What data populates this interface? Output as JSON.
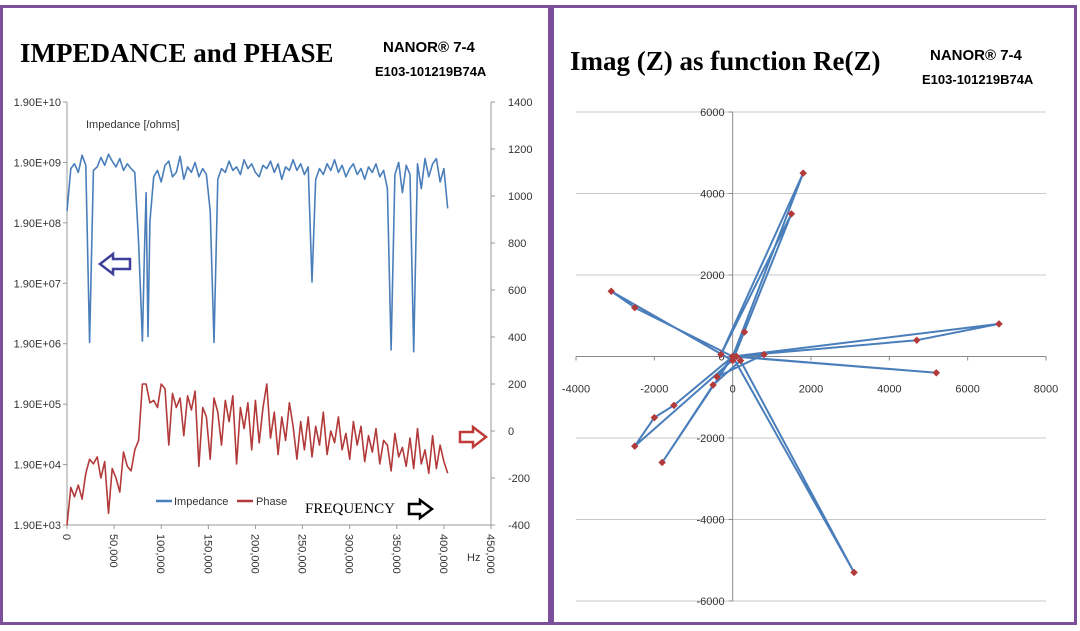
{
  "colors": {
    "border": "#7b4f9a",
    "impedance": "#4a7ebb",
    "phase": "#b23a3a",
    "grid": "#c8c8c8",
    "left_arrow": "#3d3f9b",
    "right_arrow": "#c03a3a",
    "marker": "#b23a3a"
  },
  "left": {
    "title": "IMPEDANCE and PHASE",
    "product": "NANOR® 7-4",
    "serial": "E103-101219B74A",
    "series_label": "Impedance [/ohms]",
    "legend_impedance": "Impedance",
    "legend_phase": "Phase",
    "freq_label": "FREQUENCY",
    "unit_label": "Hz",
    "icons": [
      "left-arrow-icon",
      "right-arrow-icon",
      "frequency-arrow-icon"
    ]
  },
  "right": {
    "title": "Imag (Z) as function Re(Z)",
    "product": "NANOR® 7-4",
    "serial": "E103-101219B74A"
  },
  "chart_data": [
    {
      "type": "line",
      "title": "IMPEDANCE and PHASE",
      "xlabel": "Hz",
      "xlim": [
        0,
        450000
      ],
      "x_ticks": [
        "0",
        "50,000",
        "100,000",
        "150,000",
        "200,000",
        "250,000",
        "300,000",
        "350,000",
        "400,000",
        "450,000"
      ],
      "y_left_scale": "log",
      "y_left_ticks": [
        "1.90E+03",
        "1.90E+04",
        "1.90E+05",
        "1.90E+06",
        "1.90E+07",
        "1.90E+08",
        "1.90E+09",
        "1.90E+10"
      ],
      "y_left_lim": [
        1900,
        19000000000
      ],
      "y_right_ticks": [
        "-400",
        "-200",
        "0",
        "200",
        "400",
        "600",
        "800",
        "1000",
        "1200",
        "1400"
      ],
      "y_right_lim": [
        -400,
        1400
      ],
      "grid": false,
      "legend_position": "bottom",
      "annotations": [
        "Impedance [/ohms]",
        "FREQUENCY"
      ],
      "series": [
        {
          "name": "Impedance",
          "axis": "left",
          "points": [
            [
              0,
              300000000
            ],
            [
              4000,
              1500000000
            ],
            [
              8000,
              1800000000
            ],
            [
              12000,
              1300000000
            ],
            [
              16000,
              2500000000
            ],
            [
              20000,
              1700000000
            ],
            [
              24000,
              2000000
            ],
            [
              28000,
              1400000000
            ],
            [
              32000,
              1600000000
            ],
            [
              36000,
              2300000000
            ],
            [
              40000,
              1700000000
            ],
            [
              44000,
              2600000000
            ],
            [
              48000,
              2000000000
            ],
            [
              52000,
              1600000000
            ],
            [
              56000,
              2200000000
            ],
            [
              60000,
              1400000000
            ],
            [
              64000,
              1800000000
            ],
            [
              68000,
              1500000000
            ],
            [
              72000,
              1300000000
            ],
            [
              76000,
              90000000
            ],
            [
              80000,
              2100000
            ],
            [
              82000,
              50000000
            ],
            [
              84000,
              600000000
            ],
            [
              86000,
              2500000
            ],
            [
              88000,
              200000000
            ],
            [
              92000,
              1100000000
            ],
            [
              96000,
              1400000000
            ],
            [
              100000,
              900000000
            ],
            [
              104000,
              1700000000
            ],
            [
              108000,
              2000000000
            ],
            [
              112000,
              1100000000
            ],
            [
              116000,
              1300000000
            ],
            [
              120000,
              2400000000
            ],
            [
              124000,
              1000000000
            ],
            [
              128000,
              1600000000
            ],
            [
              132000,
              1300000000
            ],
            [
              136000,
              1900000000
            ],
            [
              140000,
              1100000000
            ],
            [
              144000,
              1500000000
            ],
            [
              148000,
              1200000000
            ],
            [
              152000,
              300000000
            ],
            [
              156000,
              2000000
            ],
            [
              160000,
              1000000000
            ],
            [
              164000,
              1500000000
            ],
            [
              168000,
              1300000000
            ],
            [
              172000,
              2000000000
            ],
            [
              176000,
              1400000000
            ],
            [
              180000,
              1600000000
            ],
            [
              184000,
              1200000000
            ],
            [
              188000,
              2100000000
            ],
            [
              192000,
              1500000000
            ],
            [
              196000,
              1800000000
            ],
            [
              200000,
              1300000000
            ],
            [
              204000,
              1100000000
            ],
            [
              208000,
              1700000000
            ],
            [
              212000,
              1500000000
            ],
            [
              216000,
              2000000000
            ],
            [
              220000,
              1300000000
            ],
            [
              224000,
              1800000000
            ],
            [
              228000,
              1000000000
            ],
            [
              232000,
              1600000000
            ],
            [
              236000,
              1400000000
            ],
            [
              240000,
              2100000000
            ],
            [
              244000,
              1400000000
            ],
            [
              248000,
              1800000000
            ],
            [
              252000,
              1200000000
            ],
            [
              256000,
              1600000000
            ],
            [
              260000,
              20000000
            ],
            [
              264000,
              1000000000
            ],
            [
              268000,
              1500000000
            ],
            [
              272000,
              1200000000
            ],
            [
              276000,
              1800000000
            ],
            [
              280000,
              1400000000
            ],
            [
              284000,
              2100000000
            ],
            [
              288000,
              1300000000
            ],
            [
              292000,
              1700000000
            ],
            [
              296000,
              1100000000
            ],
            [
              300000,
              1500000000
            ],
            [
              304000,
              1800000000
            ],
            [
              308000,
              1200000000
            ],
            [
              312000,
              1500000000
            ],
            [
              316000,
              1000000000
            ],
            [
              320000,
              1600000000
            ],
            [
              324000,
              1300000000
            ],
            [
              328000,
              1800000000
            ],
            [
              332000,
              1100000000
            ],
            [
              336000,
              1400000000
            ],
            [
              340000,
              700000000
            ],
            [
              344000,
              1500000
            ],
            [
              348000,
              1200000000
            ],
            [
              352000,
              1900000000
            ],
            [
              356000,
              600000000
            ],
            [
              360000,
              1700000000
            ],
            [
              364000,
              1200000000
            ],
            [
              368000,
              1400000
            ],
            [
              372000,
              1800000000
            ],
            [
              376000,
              700000000
            ],
            [
              380000,
              2200000000
            ],
            [
              384000,
              1100000000
            ],
            [
              388000,
              1800000000
            ],
            [
              392000,
              2200000000
            ],
            [
              396000,
              900000000
            ],
            [
              400000,
              1500000000
            ],
            [
              404000,
              330000000
            ]
          ]
        },
        {
          "name": "Phase",
          "axis": "right",
          "points": [
            [
              0,
              -400
            ],
            [
              4000,
              -240
            ],
            [
              8000,
              -280
            ],
            [
              12000,
              -230
            ],
            [
              16000,
              -290
            ],
            [
              20000,
              -180
            ],
            [
              24000,
              -120
            ],
            [
              28000,
              -140
            ],
            [
              32000,
              -110
            ],
            [
              36000,
              -200
            ],
            [
              40000,
              -130
            ],
            [
              44000,
              -350
            ],
            [
              48000,
              -160
            ],
            [
              52000,
              -200
            ],
            [
              56000,
              -260
            ],
            [
              60000,
              -90
            ],
            [
              64000,
              -150
            ],
            [
              68000,
              -170
            ],
            [
              72000,
              -80
            ],
            [
              76000,
              -40
            ],
            [
              80000,
              200
            ],
            [
              84000,
              200
            ],
            [
              88000,
              120
            ],
            [
              92000,
              130
            ],
            [
              96000,
              100
            ],
            [
              100000,
              200
            ],
            [
              104000,
              180
            ],
            [
              108000,
              -60
            ],
            [
              112000,
              160
            ],
            [
              116000,
              100
            ],
            [
              120000,
              140
            ],
            [
              124000,
              -20
            ],
            [
              128000,
              150
            ],
            [
              132000,
              90
            ],
            [
              136000,
              170
            ],
            [
              140000,
              -150
            ],
            [
              144000,
              100
            ],
            [
              148000,
              60
            ],
            [
              152000,
              -120
            ],
            [
              156000,
              140
            ],
            [
              160000,
              80
            ],
            [
              164000,
              -60
            ],
            [
              168000,
              130
            ],
            [
              172000,
              40
            ],
            [
              176000,
              150
            ],
            [
              180000,
              -140
            ],
            [
              184000,
              100
            ],
            [
              188000,
              10
            ],
            [
              192000,
              120
            ],
            [
              196000,
              -80
            ],
            [
              200000,
              130
            ],
            [
              204000,
              -50
            ],
            [
              208000,
              100
            ],
            [
              212000,
              200
            ],
            [
              216000,
              -30
            ],
            [
              220000,
              80
            ],
            [
              224000,
              -100
            ],
            [
              228000,
              60
            ],
            [
              232000,
              -40
            ],
            [
              236000,
              120
            ],
            [
              240000,
              20
            ],
            [
              244000,
              -120
            ],
            [
              248000,
              40
            ],
            [
              252000,
              -80
            ],
            [
              256000,
              60
            ],
            [
              260000,
              -110
            ],
            [
              264000,
              20
            ],
            [
              268000,
              -60
            ],
            [
              272000,
              80
            ],
            [
              276000,
              -100
            ],
            [
              280000,
              0
            ],
            [
              284000,
              -50
            ],
            [
              288000,
              60
            ],
            [
              292000,
              -80
            ],
            [
              296000,
              -10
            ],
            [
              300000,
              -120
            ],
            [
              304000,
              40
            ],
            [
              308000,
              -60
            ],
            [
              312000,
              20
            ],
            [
              316000,
              -130
            ],
            [
              320000,
              -20
            ],
            [
              324000,
              -90
            ],
            [
              328000,
              10
            ],
            [
              332000,
              -140
            ],
            [
              336000,
              -40
            ],
            [
              340000,
              -60
            ],
            [
              344000,
              -170
            ],
            [
              348000,
              -10
            ],
            [
              352000,
              -110
            ],
            [
              356000,
              -70
            ],
            [
              360000,
              -150
            ],
            [
              364000,
              -30
            ],
            [
              368000,
              -160
            ],
            [
              372000,
              10
            ],
            [
              376000,
              -140
            ],
            [
              380000,
              -80
            ],
            [
              384000,
              -180
            ],
            [
              388000,
              -20
            ],
            [
              392000,
              -160
            ],
            [
              396000,
              -60
            ],
            [
              400000,
              -130
            ],
            [
              404000,
              -180
            ]
          ]
        }
      ]
    },
    {
      "type": "scatter",
      "title": "Imag (Z) as function Re(Z)",
      "x_ticks": [
        "-4000",
        "-2000",
        "0",
        "2000",
        "4000",
        "6000",
        "8000"
      ],
      "xlim": [
        -4000,
        8000
      ],
      "y_ticks": [
        "-6000",
        "-4000",
        "-2000",
        "0",
        "2000",
        "4000",
        "6000"
      ],
      "ylim": [
        -6000,
        6000
      ],
      "grid": true,
      "connected": true,
      "points": [
        [
          0,
          0
        ],
        [
          1800,
          4500
        ],
        [
          -300,
          50
        ],
        [
          1500,
          3500
        ],
        [
          0,
          -100
        ],
        [
          -3100,
          1600
        ],
        [
          -2500,
          1200
        ],
        [
          0,
          0
        ],
        [
          6800,
          800
        ],
        [
          4700,
          400
        ],
        [
          0,
          0
        ],
        [
          5200,
          -400
        ],
        [
          100,
          0
        ],
        [
          -2500,
          -2200
        ],
        [
          -2000,
          -1500
        ],
        [
          -1500,
          -1200
        ],
        [
          0,
          0
        ],
        [
          -1800,
          -2600
        ],
        [
          -500,
          -700
        ],
        [
          200,
          -100
        ],
        [
          3100,
          -5300
        ],
        [
          0,
          0
        ],
        [
          800,
          50
        ],
        [
          -400,
          -500
        ],
        [
          0,
          0
        ],
        [
          300,
          600
        ]
      ]
    }
  ]
}
